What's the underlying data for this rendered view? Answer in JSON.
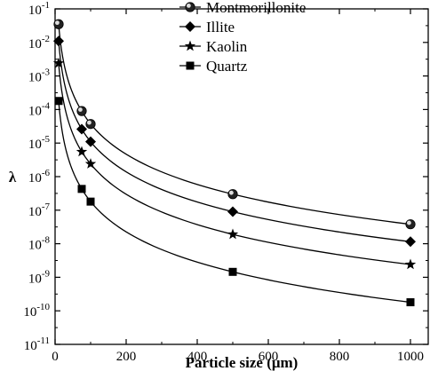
{
  "chart_data": {
    "type": "line",
    "title": "",
    "xlabel": "Particle size (μm)",
    "ylabel": "λ",
    "xlim": [
      0,
      1050
    ],
    "ylim_exp": [
      -11,
      -1
    ],
    "y_scale": "log",
    "x_ticks": [
      {
        "value": 0,
        "label": "0"
      },
      {
        "value": 200,
        "label": "200"
      },
      {
        "value": 400,
        "label": "400"
      },
      {
        "value": 600,
        "label": "600"
      },
      {
        "value": 800,
        "label": "800"
      },
      {
        "value": 1000,
        "label": "1000"
      }
    ],
    "y_ticks": [
      {
        "exp": -1,
        "base": "10",
        "sup": "-1"
      },
      {
        "exp": -2,
        "base": "10",
        "sup": "-2"
      },
      {
        "exp": -3,
        "base": "10",
        "sup": "-3"
      },
      {
        "exp": -4,
        "base": "10",
        "sup": "-4"
      },
      {
        "exp": -5,
        "base": "10",
        "sup": "-5"
      },
      {
        "exp": -6,
        "base": "10",
        "sup": "-6"
      },
      {
        "exp": -7,
        "base": "10",
        "sup": "-7"
      },
      {
        "exp": -8,
        "base": "10",
        "sup": "-8"
      },
      {
        "exp": -9,
        "base": "10",
        "sup": "-9"
      },
      {
        "exp": -10,
        "base": "10",
        "sup": "-10"
      },
      {
        "exp": -11,
        "base": "10",
        "sup": "-11"
      }
    ],
    "grid": false,
    "legend_position": "top-right",
    "series": [
      {
        "name": "Montmorillonite",
        "marker": "sphere",
        "x": [
          5,
          10,
          75,
          100,
          500,
          1000
        ],
        "y": [
          0.035,
          0.035,
          9e-05,
          3.7e-05,
          3e-07,
          3.8e-08
        ]
      },
      {
        "name": "Illite",
        "marker": "diamond",
        "x": [
          5,
          10,
          75,
          100,
          500,
          1000
        ],
        "y": [
          0.011,
          0.011,
          2.6e-05,
          1.1e-05,
          9e-08,
          1.15e-08
        ]
      },
      {
        "name": "Kaolin",
        "marker": "star",
        "x": [
          5,
          10,
          75,
          100,
          500,
          1000
        ],
        "y": [
          0.0024,
          0.0024,
          5.5e-06,
          2.4e-06,
          1.9e-08,
          2.4e-09
        ]
      },
      {
        "name": "Quartz",
        "marker": "square",
        "x": [
          5,
          10,
          75,
          100,
          500,
          1000
        ],
        "y": [
          0.00018,
          0.00018,
          4.3e-07,
          1.8e-07,
          1.45e-09,
          1.8e-10
        ]
      }
    ]
  }
}
